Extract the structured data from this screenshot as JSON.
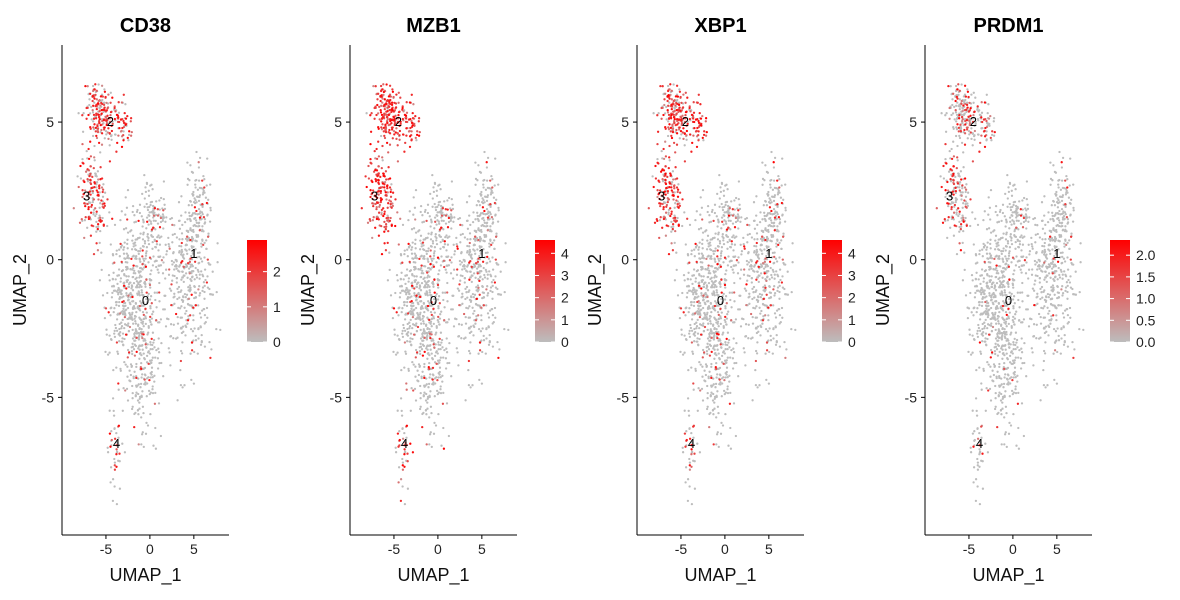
{
  "figure": {
    "type": "feature-plot-grid",
    "panel_count": 4
  },
  "chart_data": [
    {
      "type": "scatter",
      "title": "CD38",
      "xlabel": "UMAP_1",
      "ylabel": "UMAP_2",
      "xlim": [
        -10,
        9
      ],
      "ylim": [
        -10,
        7.8
      ],
      "xticks": [
        -5,
        0,
        5
      ],
      "xtick_labels": [
        "-5",
        "0",
        "5"
      ],
      "yticks": [
        -5,
        0,
        5
      ],
      "ytick_labels": [
        "-5",
        "0",
        "5"
      ],
      "grid": false,
      "color_scale": {
        "low": "#bdbdbd",
        "high": "#ff0000",
        "min": 0,
        "max": 2.9,
        "ticks": [
          0,
          1,
          2
        ],
        "tick_labels": [
          "0",
          "1",
          "2"
        ]
      },
      "cluster_labels": [
        {
          "label": "0",
          "x": -0.5,
          "y": -1.5
        },
        {
          "label": "1",
          "x": 5.0,
          "y": 0.2
        },
        {
          "label": "2",
          "x": -4.5,
          "y": 5.0
        },
        {
          "label": "3",
          "x": -7.2,
          "y": 2.3
        },
        {
          "label": "4",
          "x": -3.8,
          "y": -6.7
        }
      ],
      "expression_by_cluster": {
        "0": 0.08,
        "1": 0.1,
        "2": 0.65,
        "3": 0.6,
        "4": 0.3
      }
    },
    {
      "type": "scatter",
      "title": "MZB1",
      "xlabel": "UMAP_1",
      "ylabel": "UMAP_2",
      "xlim": [
        -10,
        9
      ],
      "ylim": [
        -10,
        7.8
      ],
      "xticks": [
        -5,
        0,
        5
      ],
      "xtick_labels": [
        "-5",
        "0",
        "5"
      ],
      "yticks": [
        -5,
        0,
        5
      ],
      "ytick_labels": [
        "-5",
        "0",
        "5"
      ],
      "grid": false,
      "color_scale": {
        "low": "#bdbdbd",
        "high": "#ff0000",
        "min": 0,
        "max": 4.6,
        "ticks": [
          0,
          1,
          2,
          3,
          4
        ],
        "tick_labels": [
          "0",
          "1",
          "2",
          "3",
          "4"
        ]
      },
      "cluster_labels": [
        {
          "label": "0",
          "x": -0.5,
          "y": -1.5
        },
        {
          "label": "1",
          "x": 5.0,
          "y": 0.2
        },
        {
          "label": "2",
          "x": -4.5,
          "y": 5.0
        },
        {
          "label": "3",
          "x": -7.2,
          "y": 2.3
        },
        {
          "label": "4",
          "x": -3.8,
          "y": -6.7
        }
      ],
      "expression_by_cluster": {
        "0": 0.1,
        "1": 0.12,
        "2": 0.95,
        "3": 0.95,
        "4": 0.5
      }
    },
    {
      "type": "scatter",
      "title": "XBP1",
      "xlabel": "UMAP_1",
      "ylabel": "UMAP_2",
      "xlim": [
        -10,
        9
      ],
      "ylim": [
        -10,
        7.8
      ],
      "xticks": [
        -5,
        0,
        5
      ],
      "xtick_labels": [
        "-5",
        "0",
        "5"
      ],
      "yticks": [
        -5,
        0,
        5
      ],
      "ytick_labels": [
        "-5",
        "0",
        "5"
      ],
      "grid": false,
      "color_scale": {
        "low": "#bdbdbd",
        "high": "#ff0000",
        "min": 0,
        "max": 4.6,
        "ticks": [
          0,
          1,
          2,
          3,
          4
        ],
        "tick_labels": [
          "0",
          "1",
          "2",
          "3",
          "4"
        ]
      },
      "cluster_labels": [
        {
          "label": "0",
          "x": -0.5,
          "y": -1.5
        },
        {
          "label": "1",
          "x": 5.0,
          "y": 0.2
        },
        {
          "label": "2",
          "x": -4.5,
          "y": 5.0
        },
        {
          "label": "3",
          "x": -7.2,
          "y": 2.3
        },
        {
          "label": "4",
          "x": -3.8,
          "y": -6.7
        }
      ],
      "expression_by_cluster": {
        "0": 0.08,
        "1": 0.12,
        "2": 0.75,
        "3": 0.75,
        "4": 0.35
      }
    },
    {
      "type": "scatter",
      "title": "PRDM1",
      "xlabel": "UMAP_1",
      "ylabel": "UMAP_2",
      "xlim": [
        -10,
        9
      ],
      "ylim": [
        -10,
        7.8
      ],
      "xticks": [
        -5,
        0,
        5
      ],
      "xtick_labels": [
        "-5",
        "0",
        "5"
      ],
      "yticks": [
        -5,
        0,
        5
      ],
      "ytick_labels": [
        "-5",
        "0",
        "5"
      ],
      "grid": false,
      "color_scale": {
        "low": "#bdbdbd",
        "high": "#ff0000",
        "min": 0,
        "max": 2.35,
        "ticks": [
          0,
          0.5,
          1.0,
          1.5,
          2.0
        ],
        "tick_labels": [
          "0.0",
          "0.5",
          "1.0",
          "1.5",
          "2.0"
        ]
      },
      "cluster_labels": [
        {
          "label": "0",
          "x": -0.5,
          "y": -1.5
        },
        {
          "label": "1",
          "x": 5.0,
          "y": 0.2
        },
        {
          "label": "2",
          "x": -4.5,
          "y": 5.0
        },
        {
          "label": "3",
          "x": -7.2,
          "y": 2.3
        },
        {
          "label": "4",
          "x": -3.8,
          "y": -6.7
        }
      ],
      "expression_by_cluster": {
        "0": 0.03,
        "1": 0.04,
        "2": 0.35,
        "3": 0.35,
        "4": 0.15
      }
    }
  ]
}
